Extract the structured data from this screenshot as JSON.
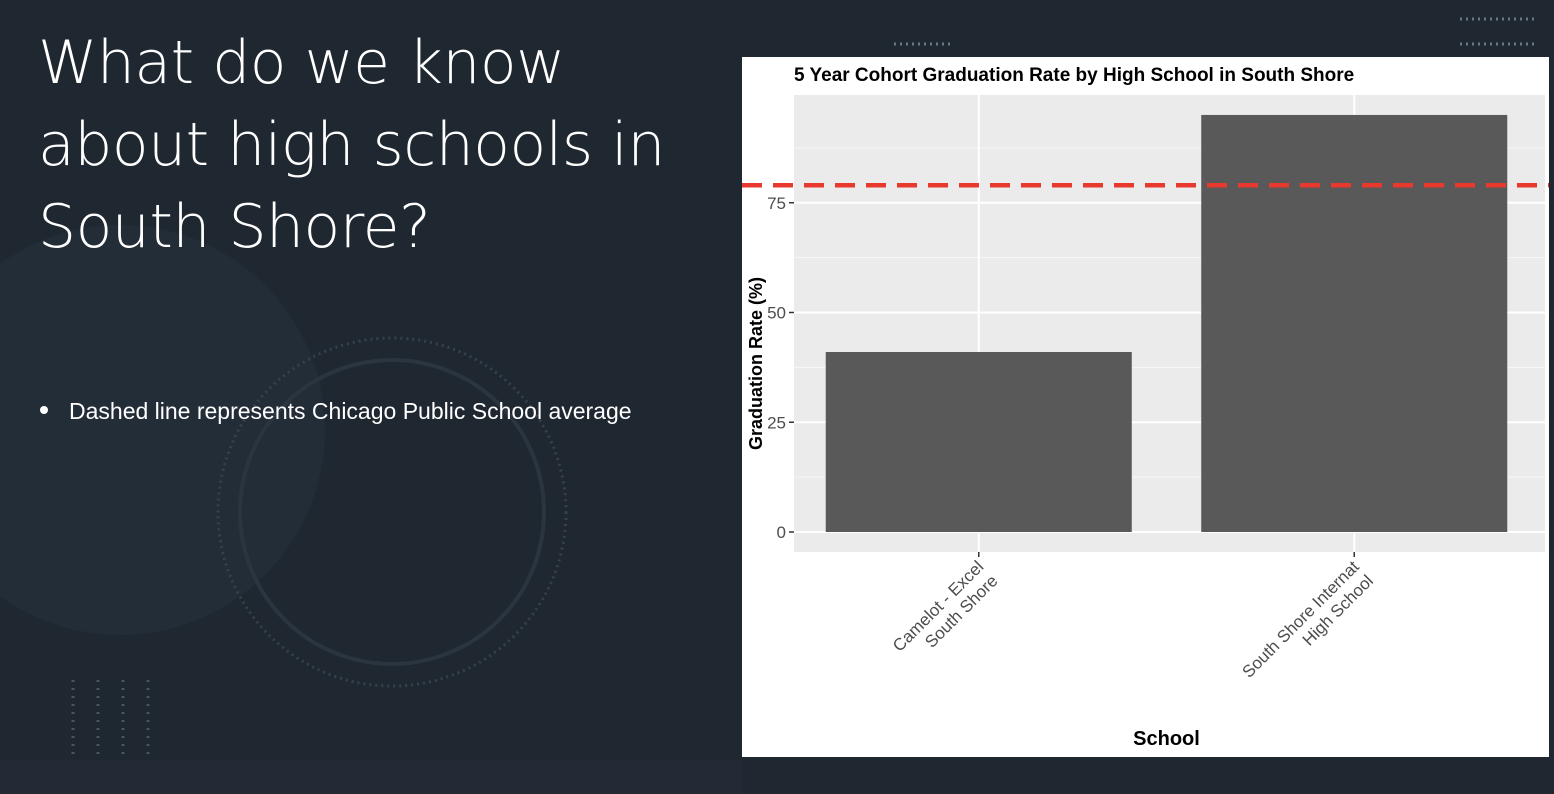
{
  "slide": {
    "title_lines": [
      "What do we know",
      "about high schools in",
      "South Shore?"
    ],
    "bullets": [
      "Dashed line represents Chicago Public School average"
    ]
  },
  "colors": {
    "background": "#1f2731",
    "bar": "#595959",
    "panel": "#ebebeb",
    "grid": "#ffffff",
    "reference_line": "#e8392f"
  },
  "chart_data": {
    "type": "bar",
    "title": "5 Year Cohort Graduation Rate by High School in South Shore",
    "xlabel": "School",
    "ylabel": "Graduation Rate (%)",
    "categories": [
      [
        "Camelot - Excel",
        "South Shore"
      ],
      [
        "South Shore Internat",
        "High School"
      ]
    ],
    "values": [
      41,
      95
    ],
    "ylim": [
      0,
      100
    ],
    "yticks": [
      0,
      25,
      50,
      75
    ],
    "reference_line": {
      "y": 79,
      "style": "dashed"
    },
    "grid": true,
    "legend": "none"
  }
}
